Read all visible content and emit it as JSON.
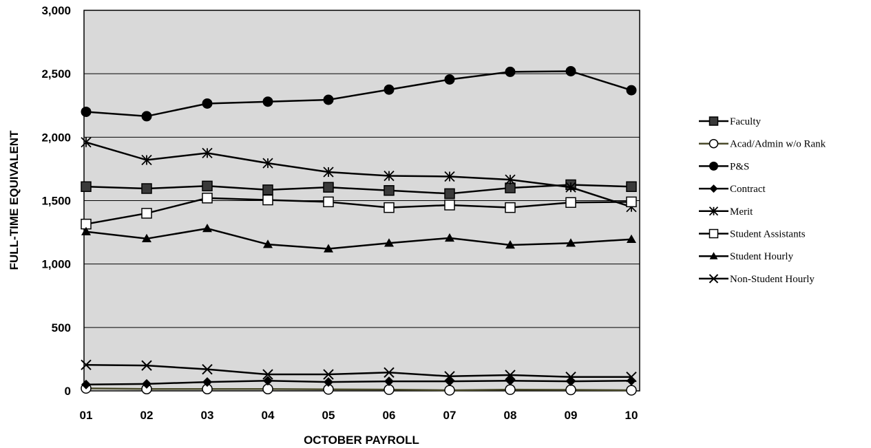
{
  "chart_data": {
    "type": "line",
    "xlabel": "OCTOBER PAYROLL",
    "ylabel": "FULL-TIME EQUIVALENT",
    "categories": [
      "01",
      "02",
      "03",
      "04",
      "05",
      "06",
      "07",
      "08",
      "09",
      "10"
    ],
    "ylim": [
      0,
      3000
    ],
    "yticks": [
      0,
      500,
      1000,
      1500,
      2000,
      2500,
      3000
    ],
    "ytick_labels": [
      "0",
      "500",
      "1,000",
      "1,500",
      "2,000",
      "2,500",
      "3,000"
    ],
    "grid": "horizontal",
    "plot_background": "#d9d9d9",
    "legend_position": "right",
    "series": [
      {
        "name": "Faculty",
        "marker": "square-filled",
        "color": "#000000",
        "values": [
          1610,
          1595,
          1615,
          1585,
          1605,
          1580,
          1555,
          1600,
          1625,
          1610
        ]
      },
      {
        "name": "Acad/Admin w/o Rank",
        "marker": "circle-open",
        "color": "#4a4a2a",
        "values": [
          20,
          15,
          15,
          15,
          12,
          10,
          5,
          10,
          8,
          5
        ]
      },
      {
        "name": "P&S",
        "marker": "circle-filled",
        "color": "#000000",
        "values": [
          2200,
          2165,
          2265,
          2280,
          2295,
          2375,
          2455,
          2515,
          2520,
          2370
        ]
      },
      {
        "name": "Contract",
        "marker": "diamond-filled",
        "color": "#000000",
        "values": [
          50,
          55,
          70,
          80,
          70,
          75,
          75,
          80,
          75,
          80
        ]
      },
      {
        "name": "Merit",
        "marker": "asterisk",
        "color": "#000000",
        "values": [
          1960,
          1820,
          1875,
          1795,
          1725,
          1695,
          1690,
          1665,
          1605,
          1450
        ]
      },
      {
        "name": "Student Assistants",
        "marker": "square-open",
        "color": "#000000",
        "values": [
          1315,
          1400,
          1520,
          1505,
          1490,
          1445,
          1465,
          1445,
          1485,
          1490
        ]
      },
      {
        "name": "Student Hourly",
        "marker": "triangle-filled",
        "color": "#000000",
        "values": [
          1255,
          1200,
          1280,
          1155,
          1120,
          1165,
          1205,
          1150,
          1165,
          1195
        ]
      },
      {
        "name": "Non-Student Hourly",
        "marker": "x",
        "color": "#000000",
        "values": [
          205,
          200,
          170,
          130,
          130,
          145,
          115,
          125,
          110,
          110
        ]
      }
    ]
  }
}
